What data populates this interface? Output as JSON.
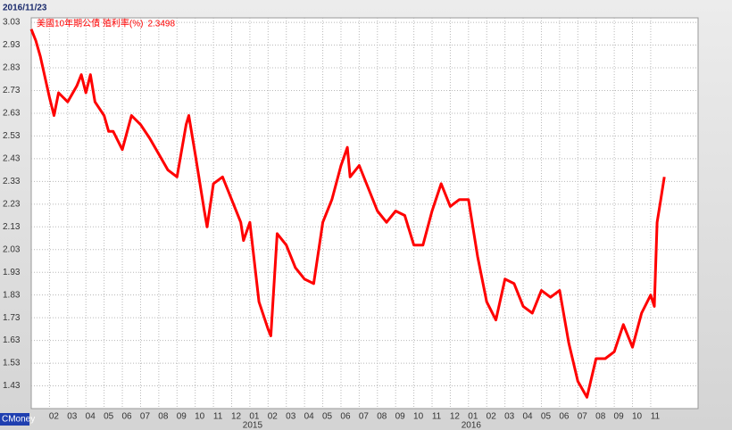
{
  "chart_data": {
    "type": "line",
    "date": "2016/11/23",
    "watermark": "CMoney",
    "latest_value": 2.3498,
    "x": [
      0,
      0.25,
      0.5,
      1,
      1.25,
      1.5,
      2,
      2.5,
      2.75,
      3,
      3.25,
      3.5,
      4,
      4.25,
      4.5,
      5,
      5.5,
      6,
      6.5,
      7,
      7.5,
      8,
      8.5,
      8.65,
      9,
      9.5,
      9.65,
      10,
      10.5,
      11,
      11.5,
      11.65,
      12,
      12.5,
      13,
      13.15,
      13.5,
      14,
      14.5,
      15,
      15.5,
      16,
      16.5,
      17,
      17.35,
      17.5,
      18,
      18.5,
      19,
      19.5,
      20,
      20.5,
      21,
      21.5,
      22,
      22.5,
      23,
      23.5,
      24,
      24.5,
      25,
      25.5,
      26,
      26.5,
      27,
      27.5,
      28,
      28.5,
      29,
      29.5,
      30,
      30.5,
      31,
      31.5,
      32,
      32.5,
      33,
      33.5,
      34,
      34.2,
      34.35,
      34.55,
      34.75
    ],
    "series": [
      {
        "name": "美國10年期公債 殖利率(%)",
        "color": "#ff0000",
        "values": [
          3.0,
          2.95,
          2.88,
          2.7,
          2.62,
          2.72,
          2.68,
          2.75,
          2.8,
          2.72,
          2.8,
          2.68,
          2.62,
          2.55,
          2.55,
          2.47,
          2.62,
          2.58,
          2.52,
          2.45,
          2.38,
          2.35,
          2.58,
          2.62,
          2.45,
          2.2,
          2.13,
          2.32,
          2.35,
          2.25,
          2.15,
          2.07,
          2.15,
          1.8,
          1.68,
          1.65,
          2.1,
          2.05,
          1.95,
          1.9,
          1.88,
          2.15,
          2.25,
          2.4,
          2.48,
          2.35,
          2.4,
          2.3,
          2.2,
          2.15,
          2.2,
          2.18,
          2.05,
          2.05,
          2.2,
          2.32,
          2.22,
          2.25,
          2.25,
          2.0,
          1.8,
          1.72,
          1.9,
          1.88,
          1.78,
          1.75,
          1.85,
          1.82,
          1.85,
          1.62,
          1.45,
          1.38,
          1.55,
          1.55,
          1.58,
          1.7,
          1.6,
          1.75,
          1.83,
          1.78,
          2.15,
          2.25,
          2.35
        ]
      }
    ],
    "xlim": [
      0,
      36.6
    ],
    "ylim": [
      1.33,
      3.05
    ],
    "yticks": [
      1.43,
      1.53,
      1.63,
      1.73,
      1.83,
      1.93,
      2.03,
      2.13,
      2.23,
      2.33,
      2.43,
      2.53,
      2.63,
      2.73,
      2.83,
      2.93,
      3.03
    ],
    "xticks": [
      {
        "value": 1,
        "label": "02"
      },
      {
        "value": 2,
        "label": "03"
      },
      {
        "value": 3,
        "label": "04"
      },
      {
        "value": 4,
        "label": "05"
      },
      {
        "value": 5,
        "label": "06"
      },
      {
        "value": 6,
        "label": "07"
      },
      {
        "value": 7,
        "label": "08"
      },
      {
        "value": 8,
        "label": "09"
      },
      {
        "value": 9,
        "label": "10"
      },
      {
        "value": 10,
        "label": "11"
      },
      {
        "value": 11,
        "label": "12"
      },
      {
        "value": 12,
        "label": "01"
      },
      {
        "value": 13,
        "label": "02"
      },
      {
        "value": 14,
        "label": "03"
      },
      {
        "value": 15,
        "label": "04"
      },
      {
        "value": 16,
        "label": "05"
      },
      {
        "value": 17,
        "label": "06"
      },
      {
        "value": 18,
        "label": "07"
      },
      {
        "value": 19,
        "label": "08"
      },
      {
        "value": 20,
        "label": "09"
      },
      {
        "value": 21,
        "label": "10"
      },
      {
        "value": 22,
        "label": "11"
      },
      {
        "value": 23,
        "label": "12"
      },
      {
        "value": 24,
        "label": "01"
      },
      {
        "value": 25,
        "label": "02"
      },
      {
        "value": 26,
        "label": "03"
      },
      {
        "value": 27,
        "label": "04"
      },
      {
        "value": 28,
        "label": "05"
      },
      {
        "value": 29,
        "label": "06"
      },
      {
        "value": 30,
        "label": "07"
      },
      {
        "value": 31,
        "label": "08"
      },
      {
        "value": 32,
        "label": "09"
      },
      {
        "value": 33,
        "label": "10"
      },
      {
        "value": 34,
        "label": "11"
      }
    ],
    "year_ticks": [
      {
        "value": 12,
        "label": "2015"
      },
      {
        "value": 24,
        "label": "2016"
      }
    ],
    "grid": true
  }
}
